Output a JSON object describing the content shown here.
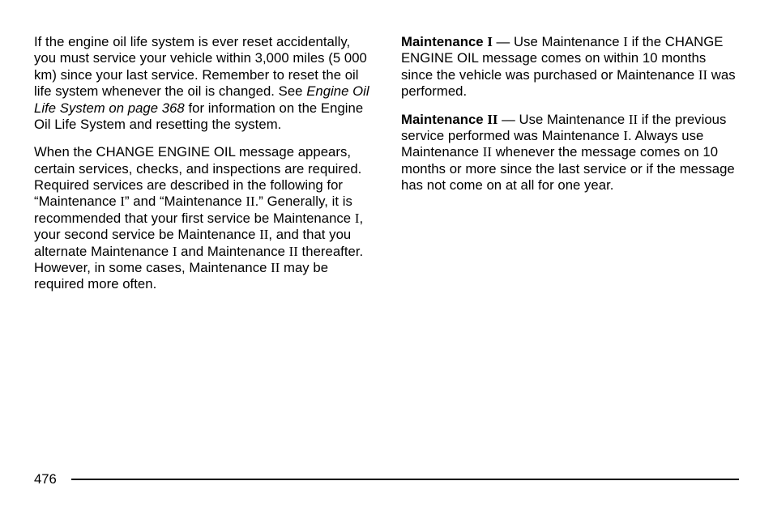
{
  "left": {
    "p1a": "If the engine oil life system is ever reset accidentally, you must service your vehicle within 3,000 miles (5 000 km) since your last service. Remember to reset the oil life system whenever the oil is changed. See ",
    "p1ital": "Engine Oil Life System on page 368",
    "p1b": " for information on the Engine Oil Life System and resetting the system.",
    "p2a": "When the CHANGE ENGINE OIL message appears, certain services, checks, and inspections are required. Required services are described in the following for “Maintenance ",
    "p2_I1": "I",
    "p2b": "” and “Maintenance ",
    "p2_II1": "II",
    "p2c": ".” Generally, it is recommended that your first service be Maintenance ",
    "p2_I2": "I",
    "p2d": ", your second service be Maintenance ",
    "p2_II2": "II",
    "p2e": ", and that you alternate Maintenance ",
    "p2_I3": "I",
    "p2f": " and Maintenance ",
    "p2_II3": "II",
    "p2g": " thereafter. However, in some cases, Maintenance ",
    "p2_II4": "II",
    "p2h": " may be required more often."
  },
  "right": {
    "p1label": "Maintenance ",
    "p1rn": "I",
    "p1a": "  — Use Maintenance ",
    "p1_I": "I",
    "p1b": " if the CHANGE ENGINE OIL message comes on within 10 months since the vehicle was purchased or Maintenance ",
    "p1_II": "II",
    "p1c": " was performed.",
    "p2label": "Maintenance ",
    "p2rn": "II",
    "p2a": "   — Use Maintenance ",
    "p2_II": "II",
    "p2b": " if the previous service performed was Maintenance ",
    "p2_I": "I",
    "p2c": ". Always use Maintenance ",
    "p2_II2": "II",
    "p2d": " whenever the message comes on 10 months or more since the last service or if the message has not come on at all for one year."
  },
  "pageNumber": "476"
}
